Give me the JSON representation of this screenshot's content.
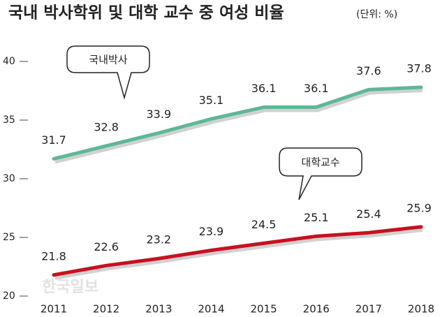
{
  "chart_data": {
    "type": "line",
    "title": "국내 박사학위 및 대학 교수 중 여성 비율",
    "subtitle": "(단위: %)",
    "watermark": "한국일보",
    "categories": [
      "2011",
      "2012",
      "2013",
      "2014",
      "2015",
      "2016",
      "2017",
      "2018"
    ],
    "series": [
      {
        "name": "국내박사",
        "color": "#5cb896",
        "values": [
          31.7,
          32.8,
          33.9,
          35.1,
          36.1,
          36.1,
          37.6,
          37.8
        ]
      },
      {
        "name": "대학교수",
        "color": "#c8101e",
        "values": [
          21.8,
          22.6,
          23.2,
          23.9,
          24.5,
          25.1,
          25.4,
          25.9
        ]
      }
    ],
    "ylim": [
      20,
      40
    ],
    "yticks": [
      20,
      25,
      30,
      35,
      40
    ],
    "grid": false
  }
}
